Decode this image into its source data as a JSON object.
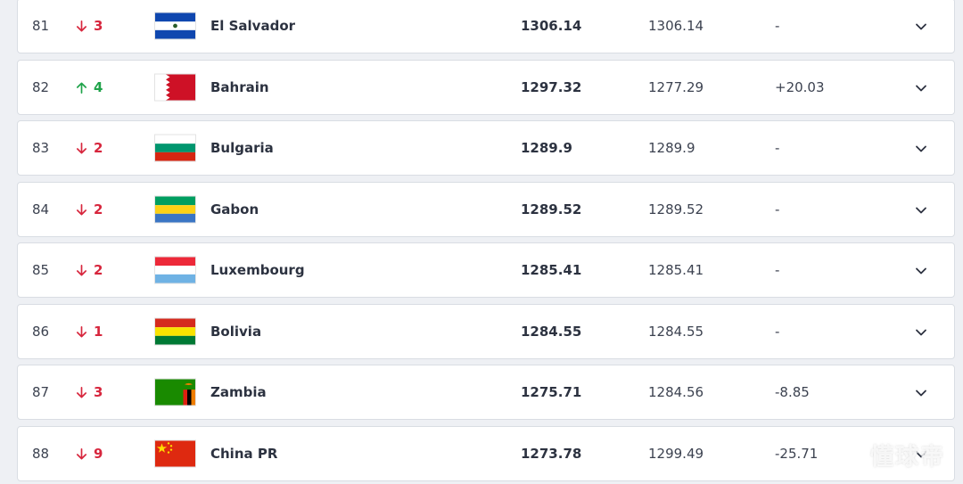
{
  "rows": [
    {
      "rank": "81",
      "dir": "down",
      "move": "3",
      "team": "El Salvador",
      "total": "1306.14",
      "previous": "1306.14",
      "points": "-",
      "flag": "el-salvador"
    },
    {
      "rank": "82",
      "dir": "up",
      "move": "4",
      "team": "Bahrain",
      "total": "1297.32",
      "previous": "1277.29",
      "points": "+20.03",
      "flag": "bahrain"
    },
    {
      "rank": "83",
      "dir": "down",
      "move": "2",
      "team": "Bulgaria",
      "total": "1289.9",
      "previous": "1289.9",
      "points": "-",
      "flag": "bulgaria"
    },
    {
      "rank": "84",
      "dir": "down",
      "move": "2",
      "team": "Gabon",
      "total": "1289.52",
      "previous": "1289.52",
      "points": "-",
      "flag": "gabon"
    },
    {
      "rank": "85",
      "dir": "down",
      "move": "2",
      "team": "Luxembourg",
      "total": "1285.41",
      "previous": "1285.41",
      "points": "-",
      "flag": "luxembourg"
    },
    {
      "rank": "86",
      "dir": "down",
      "move": "1",
      "team": "Bolivia",
      "total": "1284.55",
      "previous": "1284.55",
      "points": "-",
      "flag": "bolivia"
    },
    {
      "rank": "87",
      "dir": "down",
      "move": "3",
      "team": "Zambia",
      "total": "1275.71",
      "previous": "1284.56",
      "points": "-8.85",
      "flag": "zambia"
    },
    {
      "rank": "88",
      "dir": "down",
      "move": "9",
      "team": "China PR",
      "total": "1273.78",
      "previous": "1299.49",
      "points": "-25.71",
      "flag": "china"
    }
  ],
  "colors": {
    "down": "#d7263d",
    "up": "#1fa34a"
  },
  "icons": {
    "down": "arrow-down-icon",
    "up": "arrow-up-icon",
    "expand": "chevron-down-icon"
  },
  "watermark": "懂球帝"
}
